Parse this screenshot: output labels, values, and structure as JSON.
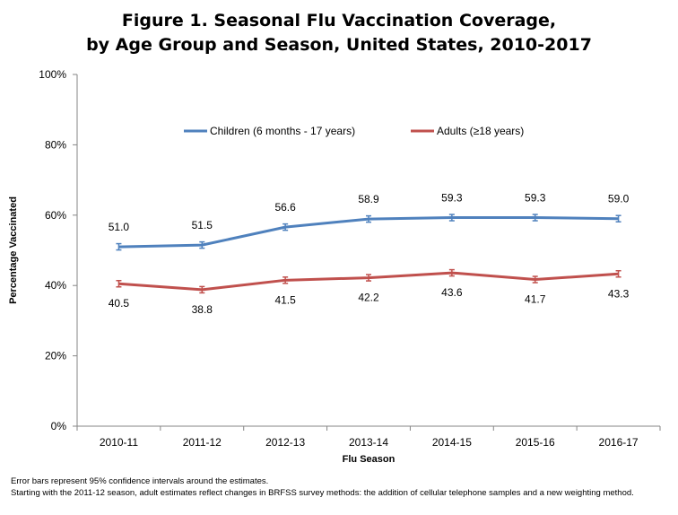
{
  "title_line1": "Figure 1. Seasonal Flu Vaccination Coverage,",
  "title_line2": "by Age Group and Season, United States, 2010-2017",
  "notes": [
    "Error bars represent 95% confidence intervals around the estimates.",
    "Starting with the 2011-12 season, adult estimates reflect changes in BRFSS survey methods: the addition of cellular telephone samples and a new weighting method."
  ],
  "chart_data": {
    "type": "line",
    "xlabel": "Flu Season",
    "ylabel": "Percentage Vaccinated",
    "ylim": [
      0,
      100
    ],
    "yticks": [
      "0%",
      "20%",
      "40%",
      "60%",
      "80%",
      "100%"
    ],
    "categories": [
      "2010-11",
      "2011-12",
      "2012-13",
      "2013-14",
      "2014-15",
      "2015-16",
      "2016-17"
    ],
    "grid": false,
    "legend": "top",
    "error_bars": true,
    "series": [
      {
        "name": "Children (6 months - 17 years)",
        "color": "#4F81BD",
        "values": [
          51.0,
          51.5,
          56.6,
          58.9,
          59.3,
          59.3,
          59.0
        ],
        "labels": [
          "51.0",
          "51.5",
          "56.6",
          "58.9",
          "59.3",
          "59.3",
          "59.0"
        ]
      },
      {
        "name": "Adults (≥18 years)",
        "color": "#C0504D",
        "values": [
          40.5,
          38.8,
          41.5,
          42.2,
          43.6,
          41.7,
          43.3
        ],
        "labels": [
          "40.5",
          "38.8",
          "41.5",
          "42.2",
          "43.6",
          "41.7",
          "43.3"
        ]
      }
    ]
  }
}
